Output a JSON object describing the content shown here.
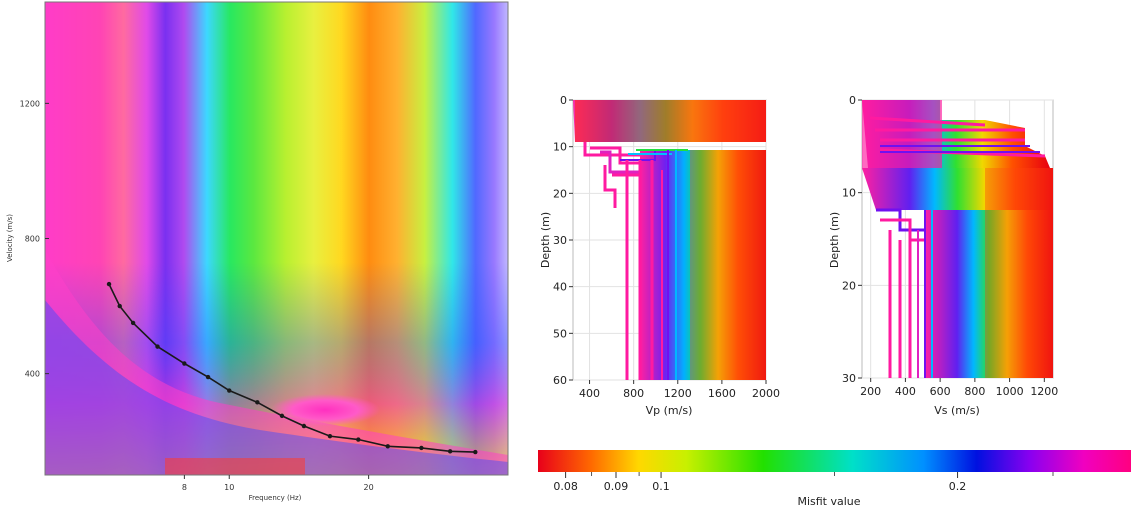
{
  "charts": {
    "dispersion": {
      "type": "heatmap",
      "xlabel": "Frequency (Hz)",
      "ylabel": "Velocity (m/s)",
      "x_ticks": [
        "8",
        "10",
        "20"
      ],
      "y_ticks": [
        "400",
        "800",
        "1200"
      ],
      "picked_curve": {
        "x": [
          5.5,
          5.8,
          6.2,
          7.0,
          8.0,
          9.0,
          10.0,
          11.5,
          13.0,
          14.5,
          16.5,
          19.0,
          22.0,
          26.0,
          30.0,
          34.0
        ],
        "y": [
          665,
          600,
          550,
          480,
          430,
          390,
          350,
          315,
          275,
          245,
          215,
          205,
          185,
          180,
          170,
          168
        ]
      }
    },
    "vp_profile": {
      "type": "line",
      "xlabel": "Vp (m/s)",
      "ylabel": "Depth (m)",
      "x_ticks": [
        "400",
        "800",
        "1200",
        "1600",
        "2000"
      ],
      "y_ticks": [
        "0",
        "10",
        "20",
        "30",
        "40",
        "50",
        "60"
      ],
      "xlim": [
        250,
        2000
      ],
      "ylim": [
        60,
        0
      ]
    },
    "vs_profile": {
      "type": "line",
      "xlabel": "Vs (m/s)",
      "ylabel": "Depth (m)",
      "x_ticks": [
        "200",
        "400",
        "600",
        "800",
        "1000",
        "1200"
      ],
      "y_ticks": [
        "0",
        "10",
        "20",
        "30"
      ],
      "xlim": [
        150,
        1250
      ],
      "ylim": [
        30,
        0
      ]
    },
    "misfit_colorbar": {
      "type": "heatmap",
      "label": "Misfit value",
      "ticks": [
        "0.08",
        "0.09",
        "0.1",
        "0.2"
      ],
      "colors": [
        "#e8001a",
        "#ff6a00",
        "#ffd800",
        "#c8f000",
        "#22e000",
        "#00e0c8",
        "#0090ff",
        "#0010e0",
        "#8a00f0",
        "#f000c0",
        "#ff0080"
      ]
    }
  },
  "chart_data": [
    {
      "type": "heatmap",
      "xlabel": "Frequency (Hz)",
      "ylabel": "Velocity (m/s)",
      "series": [
        {
          "name": "picked curve",
          "x": [
            5.5,
            5.8,
            6.2,
            7.0,
            8.0,
            9.0,
            10.0,
            11.5,
            13.0,
            14.5,
            16.5,
            19.0,
            22.0,
            26.0,
            30.0,
            34.0
          ],
          "y": [
            665,
            600,
            550,
            480,
            430,
            390,
            350,
            315,
            275,
            245,
            215,
            205,
            185,
            180,
            170,
            168
          ]
        }
      ]
    },
    {
      "type": "line",
      "xlabel": "Vp (m/s)",
      "ylabel": "Depth (m)",
      "xlim": [
        250,
        2000
      ],
      "ylim": [
        60,
        0
      ]
    },
    {
      "type": "line",
      "xlabel": "Vs (m/s)",
      "ylabel": "Depth (m)",
      "xlim": [
        150,
        1250
      ],
      "ylim": [
        30,
        0
      ]
    },
    {
      "type": "heatmap",
      "title": "",
      "xlabel": "Misfit value",
      "ticks": [
        0.08,
        0.09,
        0.1,
        0.2
      ]
    }
  ]
}
